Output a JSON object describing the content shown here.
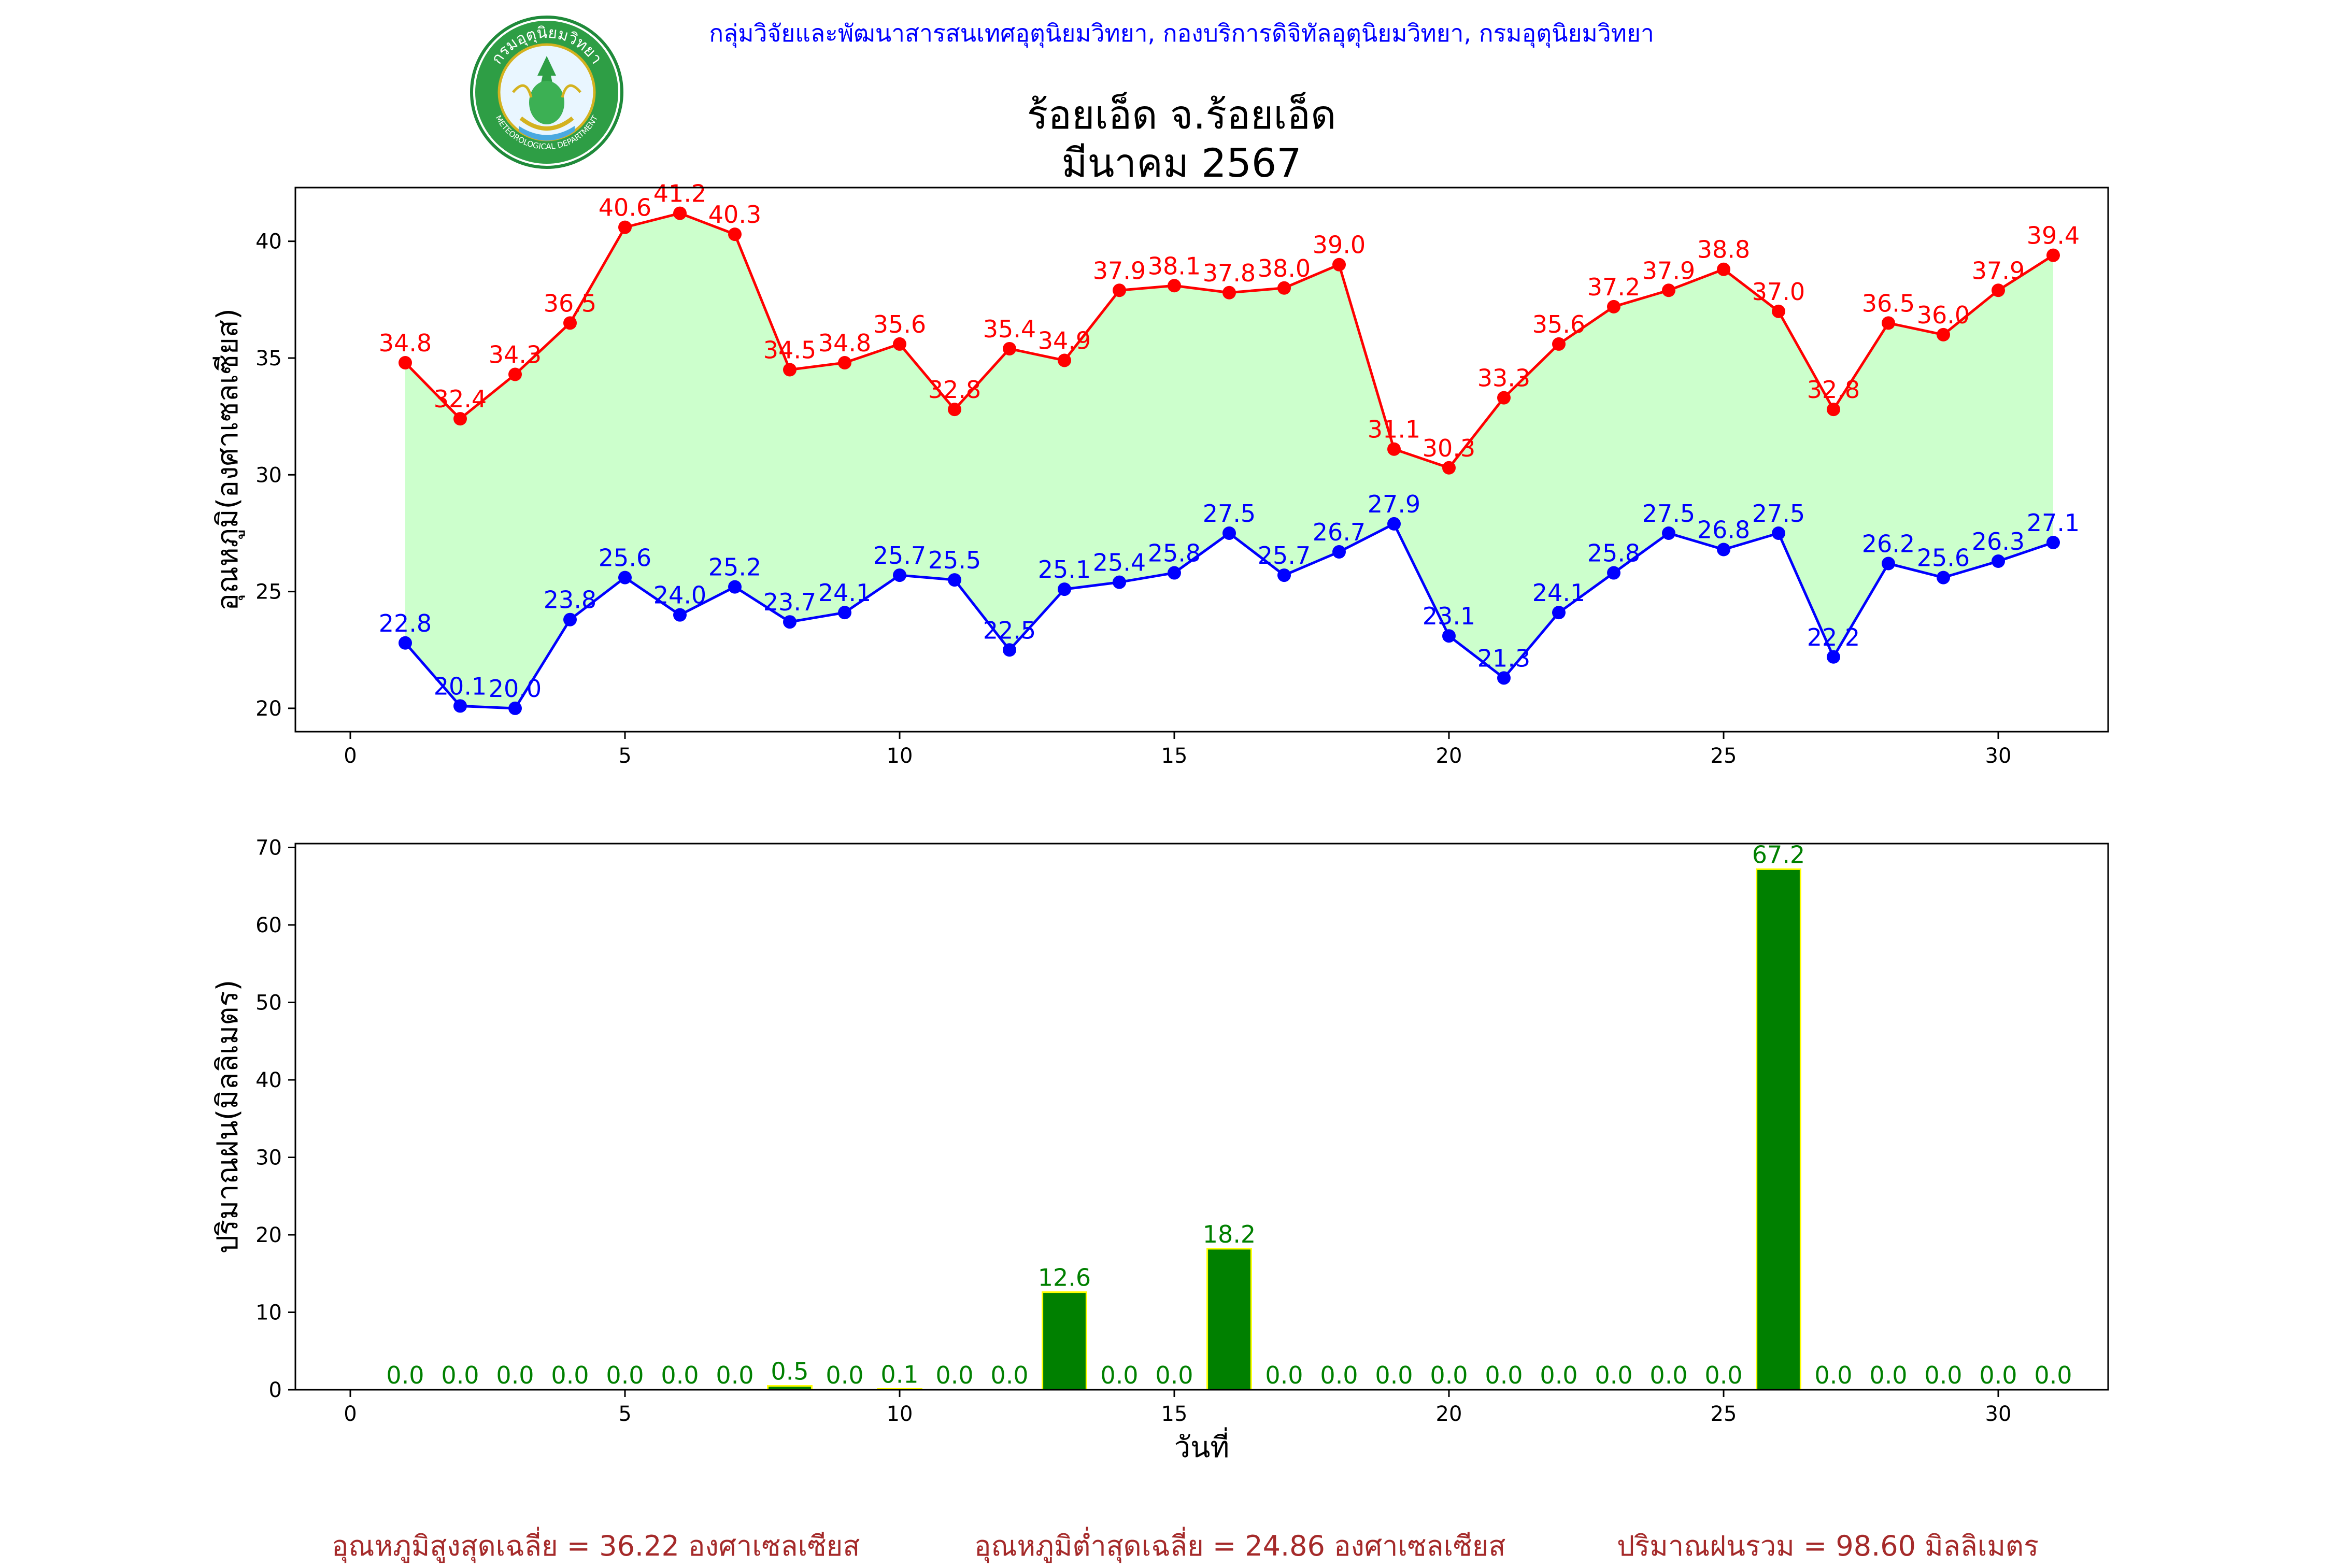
{
  "header": {
    "agency_line": "กลุ่มวิจัยและพัฒนาสารสนเทศอุตุนิยมวิทยา, กองบริการดิจิทัลอุตุนิยมวิทยา, กรมอุตุนิยมวิทยา",
    "logo_text": "กรมอุตุนิยมวิทยา",
    "logo_text_bottom": "METEOROLOGICAL DEPARTMENT",
    "title_station": "ร้อยเอ็ด จ.ร้อยเอ็ด",
    "title_period": "มีนาคม 2567"
  },
  "footer": {
    "avg_max": "อุณหภูมิสูงสุดเฉลี่ย = 36.22 องศาเซลเซียส",
    "avg_min": "อุณหภูมิต่ำสุดเฉลี่ย = 24.86 องศาเซลเซียส",
    "total_rain": "ปริมาณฝนรวม = 98.60 มิลลิเมตร"
  },
  "colors": {
    "max_line": "#ff0000",
    "min_line": "#0000ff",
    "fill": "#ccffcc",
    "bar": "#008000",
    "bar_edge": "#ffff00",
    "bar_label": "#008000",
    "footer": "#a52a2a",
    "header": "#0000ff"
  },
  "chart_data": [
    {
      "type": "line",
      "ylabel": "อุณหภูมิ(องศาเซลเซียส)",
      "xlabel": "",
      "xlim": [
        -1,
        32
      ],
      "ylim": [
        19,
        42.3
      ],
      "x_ticks": [
        0,
        5,
        10,
        15,
        20,
        25,
        30
      ],
      "y_ticks": [
        20,
        25,
        30,
        35,
        40
      ],
      "fill_between": true,
      "x": [
        1,
        2,
        3,
        4,
        5,
        6,
        7,
        8,
        9,
        10,
        11,
        12,
        13,
        14,
        15,
        16,
        17,
        18,
        19,
        20,
        21,
        22,
        23,
        24,
        25,
        26,
        27,
        28,
        29,
        30,
        31
      ],
      "series": [
        {
          "name": "max",
          "values": [
            34.8,
            32.4,
            34.3,
            36.5,
            40.6,
            41.2,
            40.3,
            34.5,
            34.8,
            35.6,
            32.8,
            35.4,
            34.9,
            37.9,
            38.1,
            37.8,
            38.0,
            39.0,
            31.1,
            30.3,
            33.3,
            35.6,
            37.2,
            37.9,
            38.8,
            37.0,
            32.8,
            36.5,
            36.0,
            37.9,
            39.4
          ]
        },
        {
          "name": "min",
          "values": [
            22.8,
            20.1,
            20.0,
            23.8,
            25.6,
            24.0,
            25.2,
            23.7,
            24.1,
            25.7,
            25.5,
            22.5,
            25.1,
            25.4,
            25.8,
            27.5,
            25.7,
            26.7,
            27.9,
            23.1,
            21.3,
            24.1,
            25.8,
            27.5,
            26.8,
            27.5,
            22.2,
            26.2,
            25.6,
            26.3,
            27.1
          ]
        }
      ]
    },
    {
      "type": "bar",
      "ylabel": "ปริมาณฝน(มิลลิเมตร)",
      "xlabel": "วันที่",
      "xlim": [
        -1,
        32
      ],
      "ylim": [
        0,
        70.5
      ],
      "x_ticks": [
        0,
        5,
        10,
        15,
        20,
        25,
        30
      ],
      "y_ticks": [
        0,
        10,
        20,
        30,
        40,
        50,
        60,
        70
      ],
      "x": [
        1,
        2,
        3,
        4,
        5,
        6,
        7,
        8,
        9,
        10,
        11,
        12,
        13,
        14,
        15,
        16,
        17,
        18,
        19,
        20,
        21,
        22,
        23,
        24,
        25,
        26,
        27,
        28,
        29,
        30,
        31
      ],
      "values": [
        0.0,
        0.0,
        0.0,
        0.0,
        0.0,
        0.0,
        0.0,
        0.5,
        0.0,
        0.1,
        0.0,
        0.0,
        12.6,
        0.0,
        0.0,
        18.2,
        0.0,
        0.0,
        0.0,
        0.0,
        0.0,
        0.0,
        0.0,
        0.0,
        0.0,
        67.2,
        0.0,
        0.0,
        0.0,
        0.0,
        0.0
      ]
    }
  ]
}
